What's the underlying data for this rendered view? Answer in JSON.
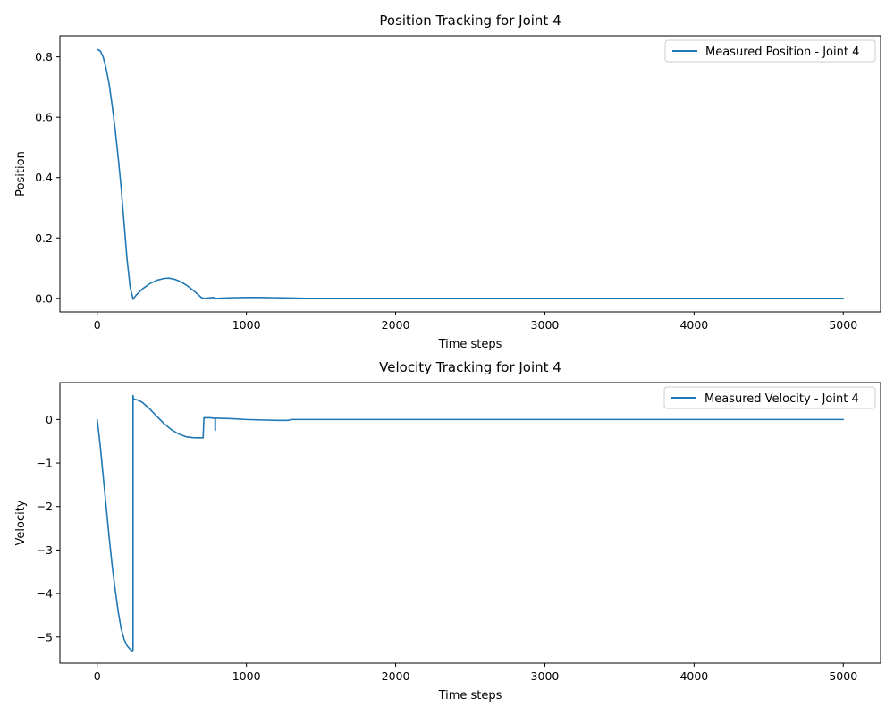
{
  "chart_data": [
    {
      "type": "line",
      "title": "Position Tracking for Joint 4",
      "xlabel": "Time steps",
      "ylabel": "Position",
      "xlim": [
        -250,
        5250
      ],
      "ylim": [
        -0.045,
        0.87
      ],
      "xticks": [
        0,
        1000,
        2000,
        3000,
        4000,
        5000
      ],
      "yticks": [
        0.0,
        0.2,
        0.4,
        0.6,
        0.8
      ],
      "ytick_labels": [
        "0.0",
        "0.2",
        "0.4",
        "0.6",
        "0.8"
      ],
      "legend_position": "upper-right",
      "grid": false,
      "series": [
        {
          "name": "Measured Position - Joint 4",
          "color": "#1f77b4",
          "x": [
            0,
            20,
            40,
            60,
            80,
            100,
            120,
            140,
            160,
            180,
            200,
            220,
            240,
            260,
            300,
            350,
            400,
            450,
            480,
            520,
            560,
            600,
            650,
            700,
            720,
            780,
            790,
            800,
            900,
            1000,
            1100,
            1200,
            1300,
            1400,
            2000,
            3000,
            4000,
            5000
          ],
          "y": [
            0.825,
            0.82,
            0.8,
            0.76,
            0.71,
            0.64,
            0.56,
            0.47,
            0.37,
            0.25,
            0.13,
            0.04,
            -0.003,
            0.01,
            0.03,
            0.048,
            0.06,
            0.066,
            0.067,
            0.063,
            0.055,
            0.043,
            0.024,
            0.002,
            0.0,
            0.003,
            0.0,
            0.0,
            0.002,
            0.003,
            0.003,
            0.002,
            0.001,
            0.0,
            0.0,
            0.0,
            0.0,
            0.0
          ]
        }
      ]
    },
    {
      "type": "line",
      "title": "Velocity Tracking for Joint 4",
      "xlabel": "Time steps",
      "ylabel": "Velocity",
      "xlim": [
        -250,
        5250
      ],
      "ylim": [
        -5.6,
        0.85
      ],
      "xticks": [
        0,
        1000,
        2000,
        3000,
        4000,
        5000
      ],
      "yticks": [
        -5,
        -4,
        -3,
        -2,
        -1,
        0
      ],
      "ytick_labels": [
        "−5",
        "−4",
        "−3",
        "−2",
        "−1",
        "0"
      ],
      "legend_position": "upper-right",
      "grid": false,
      "series": [
        {
          "name": "Measured Velocity - Joint 4",
          "color": "#1f77b4",
          "x": [
            0,
            20,
            40,
            60,
            80,
            100,
            120,
            140,
            160,
            180,
            200,
            220,
            235,
            240,
            240,
            242,
            245,
            270,
            300,
            350,
            400,
            450,
            500,
            550,
            600,
            650,
            700,
            710,
            715,
            720,
            760,
            780,
            790,
            790,
            792,
            792,
            800,
            900,
            1000,
            1100,
            1200,
            1280,
            1300,
            2000,
            3000,
            4000,
            5000
          ],
          "y": [
            0.0,
            -0.6,
            -1.3,
            -2.0,
            -2.7,
            -3.35,
            -3.9,
            -4.4,
            -4.8,
            -5.05,
            -5.2,
            -5.28,
            -5.32,
            -5.3,
            0.55,
            0.5,
            0.47,
            0.45,
            0.4,
            0.25,
            0.07,
            -0.1,
            -0.24,
            -0.34,
            -0.4,
            -0.42,
            -0.42,
            -0.42,
            0.04,
            0.04,
            0.04,
            0.03,
            0.03,
            -0.25,
            -0.25,
            0.03,
            0.03,
            0.02,
            0.0,
            -0.01,
            -0.02,
            -0.02,
            0.0,
            0.0,
            0.0,
            0.0,
            0.0
          ]
        }
      ]
    }
  ]
}
